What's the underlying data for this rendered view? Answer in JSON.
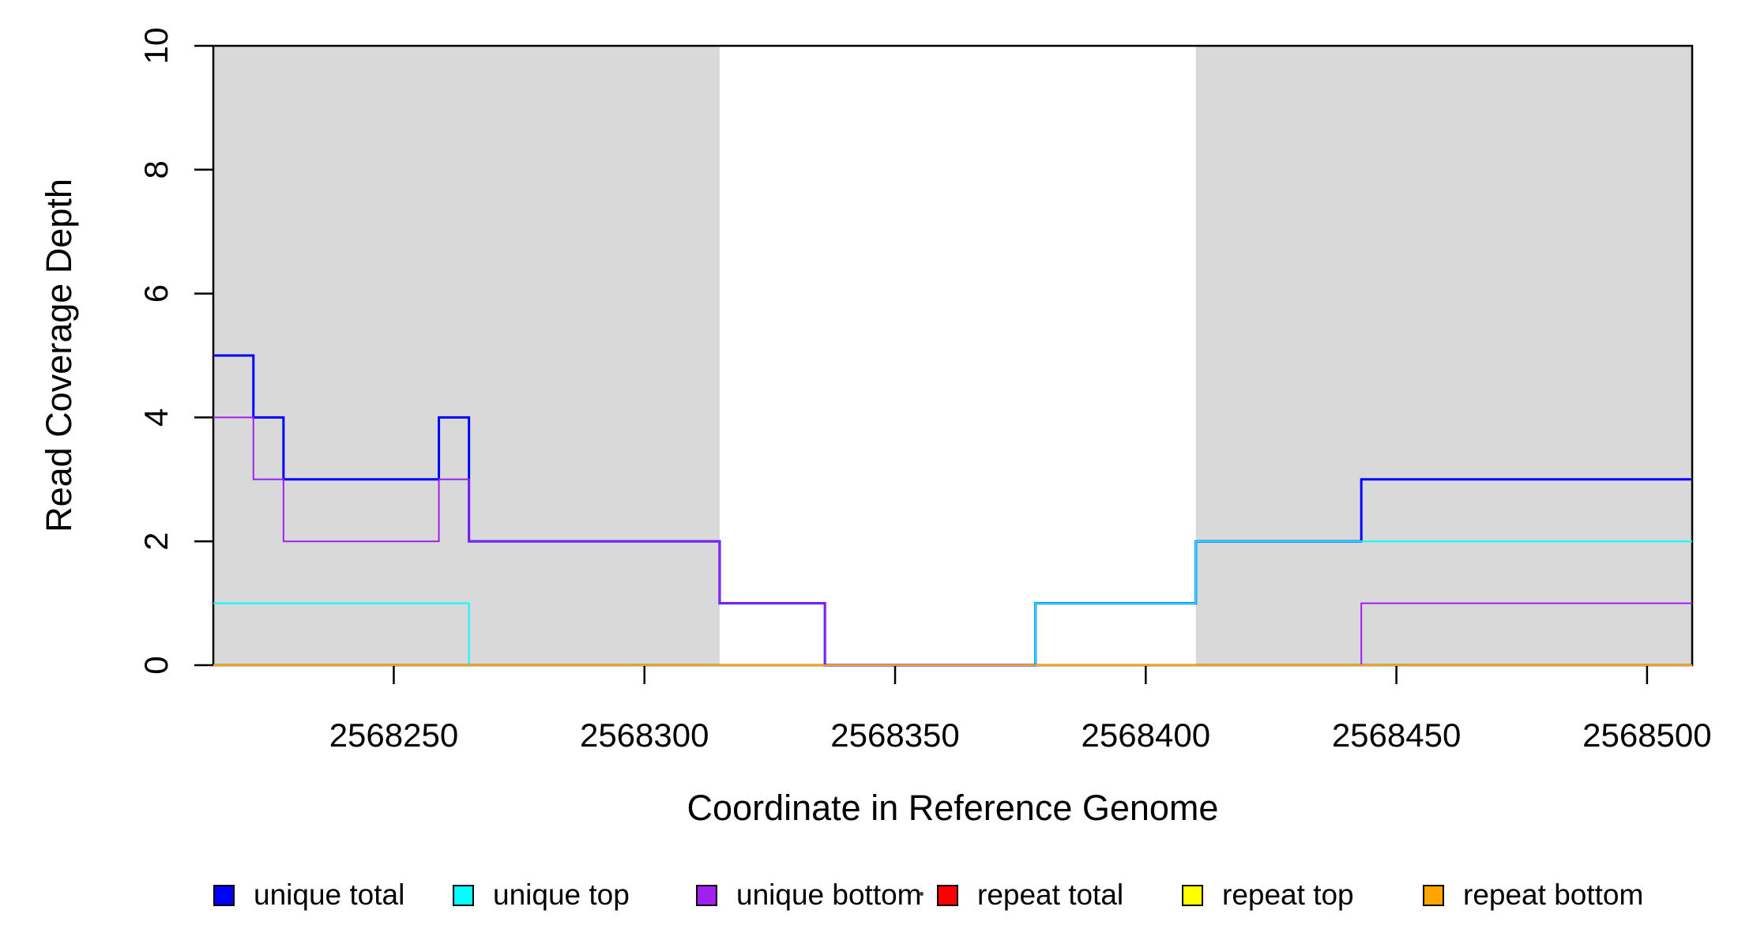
{
  "chart_data": {
    "type": "line",
    "subtype": "step",
    "title": "",
    "xlabel": "Coordinate in Reference Genome",
    "ylabel": "Read Coverage Depth",
    "xlim": [
      2568214,
      2568509
    ],
    "ylim": [
      0,
      10
    ],
    "x_ticks": [
      "2568250",
      "2568300",
      "2568350",
      "2568400",
      "2568450",
      "2568500"
    ],
    "x_tick_values": [
      2568250,
      2568300,
      2568350,
      2568400,
      2568450,
      2568500
    ],
    "y_ticks": [
      "0",
      "2",
      "4",
      "6",
      "8",
      "10"
    ],
    "y_tick_values": [
      0,
      2,
      4,
      6,
      8,
      10
    ],
    "grid": false,
    "legend_position": "bottom",
    "axis_color": "#000000",
    "shaded_regions": [
      {
        "name": "left-gray-block",
        "x_start": 2568214,
        "x_end": 2568315,
        "color": "#D9D9D9"
      },
      {
        "name": "right-gray-block",
        "x_start": 2568410,
        "x_end": 2568509,
        "color": "#D9D9D9"
      }
    ],
    "series": [
      {
        "name": "unique total",
        "color": "#0000FF",
        "line_width": 3,
        "steps": [
          [
            2568214,
            5
          ],
          [
            2568222,
            4
          ],
          [
            2568228,
            3
          ],
          [
            2568259,
            4
          ],
          [
            2568265,
            2
          ],
          [
            2568315,
            1
          ],
          [
            2568336,
            0
          ],
          [
            2568378,
            1
          ],
          [
            2568410,
            2
          ],
          [
            2568443,
            3
          ],
          [
            2568509,
            3
          ]
        ]
      },
      {
        "name": "unique top",
        "color": "#00FFFF",
        "line_width": 2,
        "steps": [
          [
            2568214,
            1
          ],
          [
            2568265,
            0
          ],
          [
            2568378,
            1
          ],
          [
            2568410,
            2
          ],
          [
            2568509,
            2
          ]
        ]
      },
      {
        "name": "unique bottom",
        "color": "#A020F0",
        "line_width": 2,
        "steps": [
          [
            2568214,
            4
          ],
          [
            2568222,
            3
          ],
          [
            2568228,
            2
          ],
          [
            2568259,
            3
          ],
          [
            2568265,
            2
          ],
          [
            2568315,
            1
          ],
          [
            2568336,
            0
          ],
          [
            2568443,
            1
          ],
          [
            2568509,
            1
          ]
        ]
      },
      {
        "name": "repeat total",
        "color": "#FF0000",
        "line_width": 2,
        "steps": [
          [
            2568214,
            0
          ],
          [
            2568509,
            0
          ]
        ]
      },
      {
        "name": "repeat top",
        "color": "#FFFF00",
        "line_width": 2,
        "steps": [
          [
            2568214,
            0
          ],
          [
            2568509,
            0
          ]
        ]
      },
      {
        "name": "repeat bottom",
        "color": "#FFA500",
        "line_width": 2,
        "steps": [
          [
            2568214,
            0
          ],
          [
            2568509,
            0
          ]
        ]
      }
    ]
  },
  "legend": {
    "items": [
      {
        "label": "unique total",
        "color": "#0000FF"
      },
      {
        "label": "unique top",
        "color": "#00FFFF"
      },
      {
        "label": "unique bottom",
        "color": "#A020F0"
      },
      {
        "label": "repeat total",
        "color": "#FF0000"
      },
      {
        "label": "repeat top",
        "color": "#FFFF00"
      },
      {
        "label": "repeat bottom",
        "color": "#FFA500"
      }
    ],
    "stray_mark": "·"
  }
}
